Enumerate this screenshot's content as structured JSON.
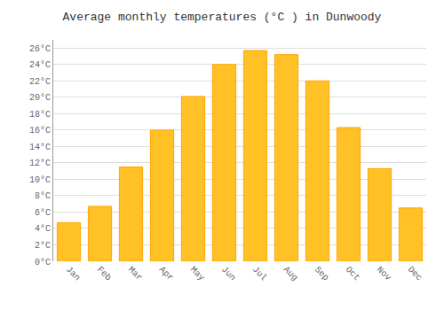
{
  "chart_data": {
    "type": "bar",
    "title": "Average monthly temperatures (°C ) in Dunwoody",
    "categories": [
      "Jan",
      "Feb",
      "Mar",
      "Apr",
      "May",
      "Jun",
      "Jul",
      "Aug",
      "Sep",
      "Oct",
      "Nov",
      "Dec"
    ],
    "values": [
      4.7,
      6.7,
      11.5,
      16.0,
      20.1,
      24.0,
      25.7,
      25.2,
      22.0,
      16.3,
      11.3,
      6.5
    ],
    "color": "#FFC125",
    "ylim": [
      0,
      27
    ],
    "yticks": [
      {
        "value": 0,
        "label": "0°C"
      },
      {
        "value": 2,
        "label": "2°C"
      },
      {
        "value": 4,
        "label": "4°C"
      },
      {
        "value": 6,
        "label": "6°C"
      },
      {
        "value": 8,
        "label": "8°C"
      },
      {
        "value": 10,
        "label": "10°C"
      },
      {
        "value": 12,
        "label": "12°C"
      },
      {
        "value": 14,
        "label": "14°C"
      },
      {
        "value": 16,
        "label": "16°C"
      },
      {
        "value": 18,
        "label": "18°C"
      },
      {
        "value": 20,
        "label": "20°C"
      },
      {
        "value": 22,
        "label": "22°C"
      },
      {
        "value": 24,
        "label": "24°C"
      },
      {
        "value": 26,
        "label": "26°C"
      }
    ],
    "grid": true
  }
}
